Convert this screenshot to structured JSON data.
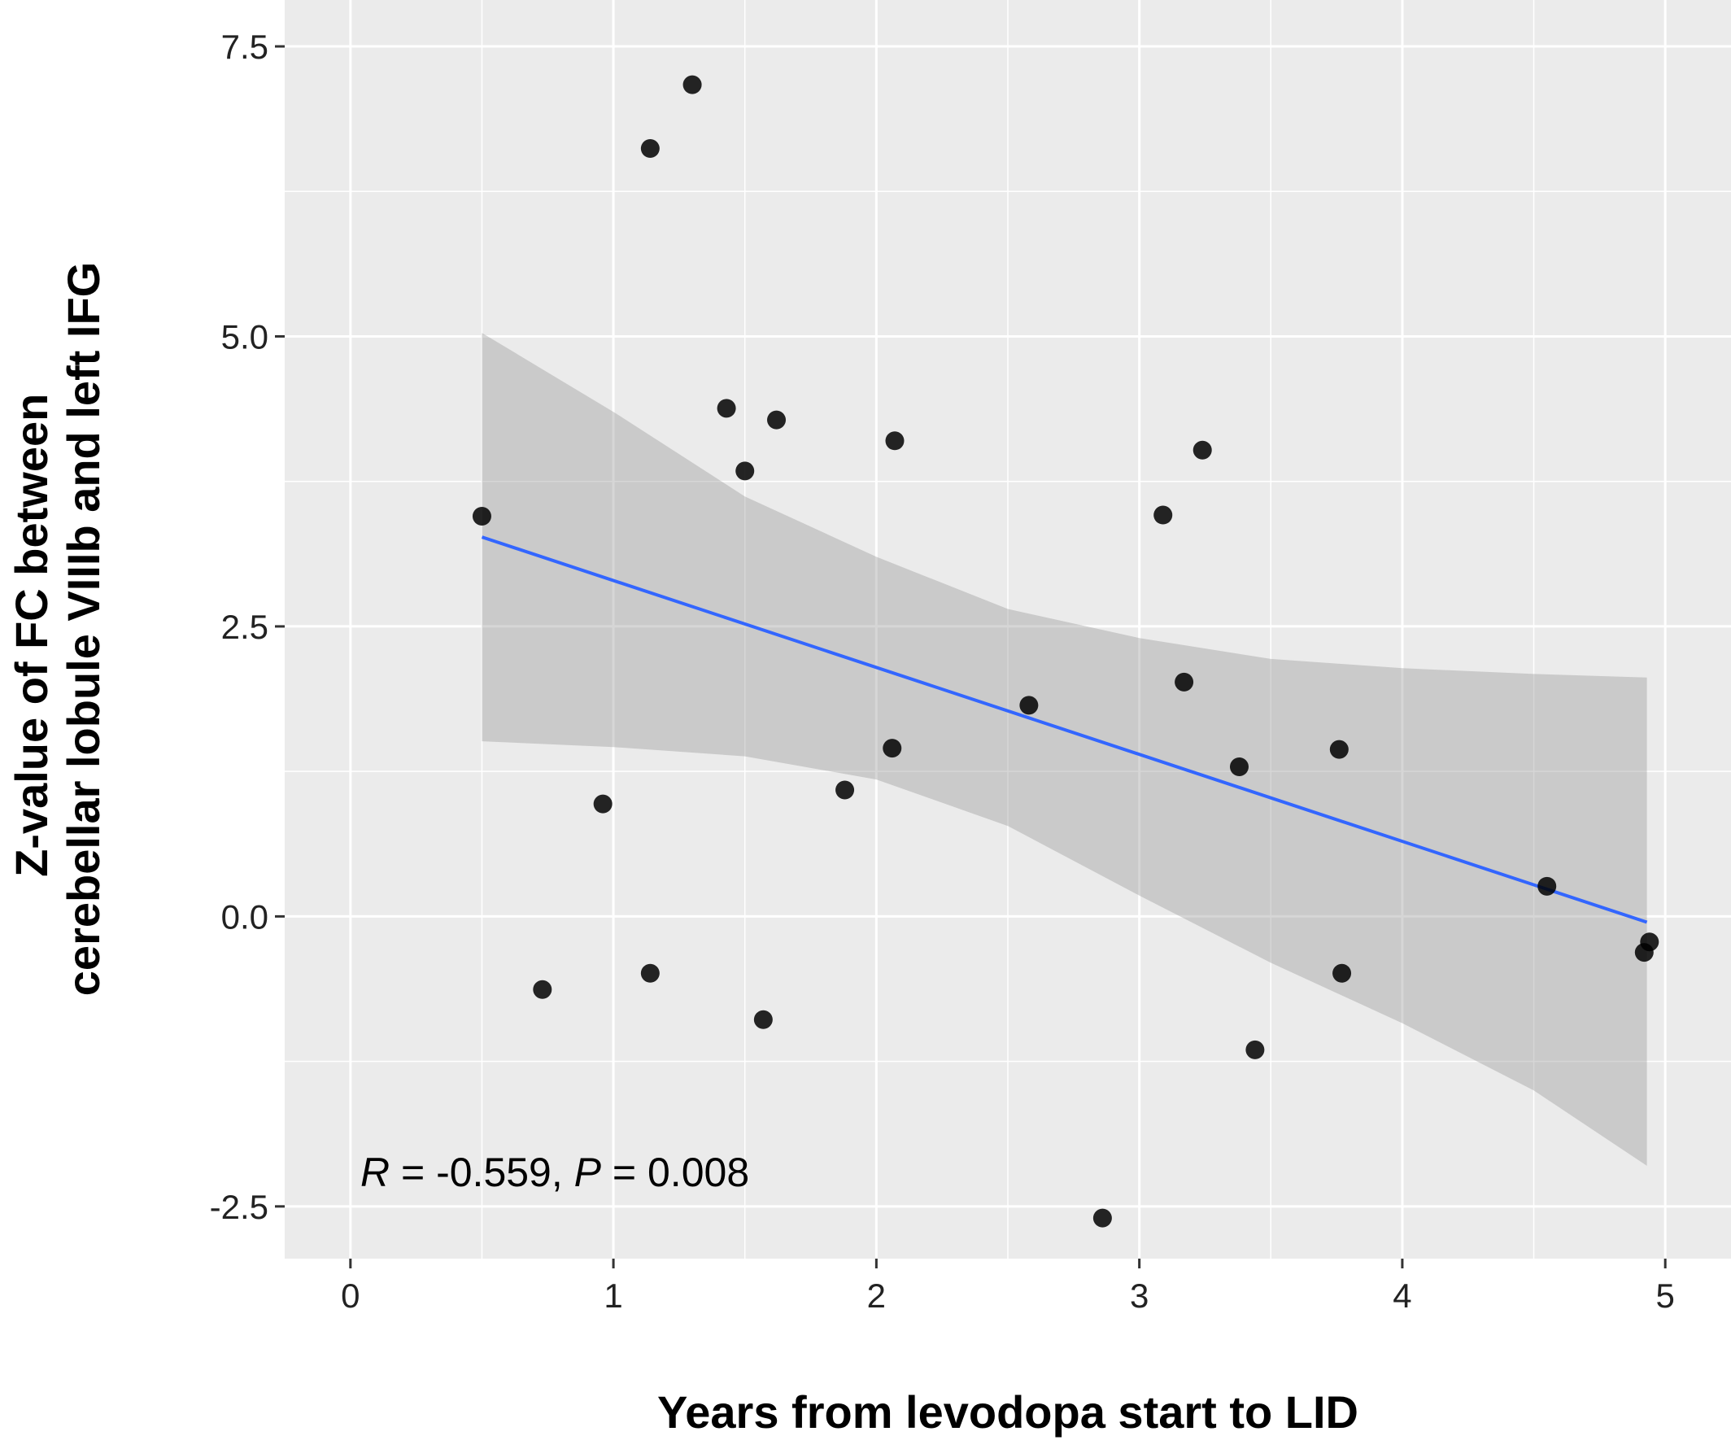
{
  "chart_data": {
    "type": "scatter",
    "xlabel": "Years from levodopa start to LID",
    "ylabel_lines": [
      "Z-value of FC between",
      "cerebellar lobule VIIIb and left IFG"
    ],
    "xlim": [
      -0.25,
      5.25
    ],
    "ylim": [
      -2.95,
      7.9
    ],
    "x_ticks": [
      0,
      1,
      2,
      3,
      4,
      5
    ],
    "x_tick_labels": [
      "0",
      "1",
      "2",
      "3",
      "4",
      "5"
    ],
    "y_ticks": [
      -2.5,
      0.0,
      2.5,
      5.0,
      7.5
    ],
    "y_tick_labels": [
      "-2.5",
      "0.0",
      "2.5",
      "5.0",
      "7.5"
    ],
    "grid": true,
    "points": [
      {
        "x": 0.5,
        "y": 3.45
      },
      {
        "x": 0.73,
        "y": -0.63
      },
      {
        "x": 0.96,
        "y": 0.97
      },
      {
        "x": 1.14,
        "y": 6.62
      },
      {
        "x": 1.14,
        "y": -0.49
      },
      {
        "x": 1.3,
        "y": 7.17
      },
      {
        "x": 1.43,
        "y": 4.38
      },
      {
        "x": 1.5,
        "y": 3.84
      },
      {
        "x": 1.57,
        "y": -0.89
      },
      {
        "x": 1.62,
        "y": 4.28
      },
      {
        "x": 1.88,
        "y": 1.09
      },
      {
        "x": 2.06,
        "y": 1.45
      },
      {
        "x": 2.07,
        "y": 4.1
      },
      {
        "x": 2.58,
        "y": 1.82
      },
      {
        "x": 2.86,
        "y": -2.6
      },
      {
        "x": 3.09,
        "y": 3.46
      },
      {
        "x": 3.17,
        "y": 2.02
      },
      {
        "x": 3.24,
        "y": 4.02
      },
      {
        "x": 3.38,
        "y": 1.29
      },
      {
        "x": 3.44,
        "y": -1.15
      },
      {
        "x": 3.76,
        "y": 1.44
      },
      {
        "x": 3.77,
        "y": -0.49
      },
      {
        "x": 4.55,
        "y": 0.26
      },
      {
        "x": 4.92,
        "y": -0.31
      },
      {
        "x": 4.94,
        "y": -0.22
      }
    ],
    "regression_line": {
      "x": [
        0.5,
        4.93
      ],
      "y": [
        3.27,
        -0.05
      ]
    },
    "confidence_band": {
      "x": [
        0.5,
        1.0,
        1.5,
        2.0,
        2.5,
        3.0,
        3.5,
        4.0,
        4.5,
        4.93
      ],
      "upper": [
        5.03,
        4.35,
        3.62,
        3.1,
        2.65,
        2.4,
        2.22,
        2.14,
        2.09,
        2.06
      ],
      "lower": [
        1.51,
        1.46,
        1.38,
        1.18,
        0.78,
        0.18,
        -0.4,
        -0.92,
        -1.5,
        -2.15
      ]
    },
    "annotation": {
      "r_label": "R",
      "r_value": " = -0.559, ",
      "p_label": "P",
      "p_value": " = 0.008"
    },
    "colors": {
      "panel_background": "#ebebeb",
      "grid": "#ffffff",
      "points": "#000000",
      "line": "#3366ff",
      "band": "#999999"
    }
  }
}
